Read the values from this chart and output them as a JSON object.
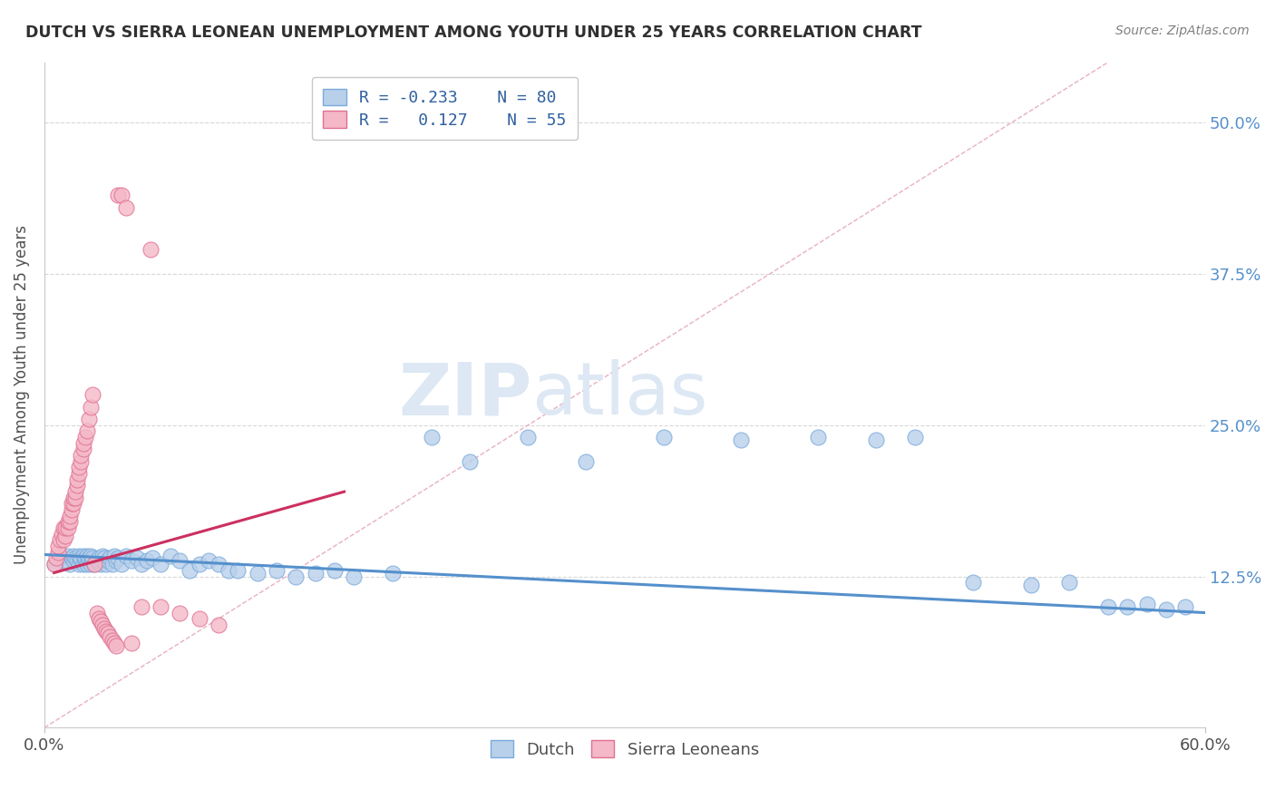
{
  "title": "DUTCH VS SIERRA LEONEAN UNEMPLOYMENT AMONG YOUTH UNDER 25 YEARS CORRELATION CHART",
  "source": "Source: ZipAtlas.com",
  "ylabel": "Unemployment Among Youth under 25 years",
  "xlim": [
    0.0,
    0.6
  ],
  "ylim": [
    0.0,
    0.55
  ],
  "xticks": [
    0.0,
    0.6
  ],
  "xticklabels": [
    "0.0%",
    "60.0%"
  ],
  "yticks": [
    0.125,
    0.25,
    0.375,
    0.5
  ],
  "yticklabels": [
    "12.5%",
    "25.0%",
    "37.5%",
    "50.0%"
  ],
  "dutch_R": -0.233,
  "dutch_N": 80,
  "sierra_R": 0.127,
  "sierra_N": 55,
  "dutch_color": "#b8d0ea",
  "dutch_edge_color": "#7aaadd",
  "dutch_line_color": "#5590cc",
  "sierra_color": "#f4b8c8",
  "sierra_edge_color": "#e07090",
  "sierra_line_color": "#cc3060",
  "ref_line_color": "#e8b0c0",
  "grid_color": "#d8d8d8",
  "legend_text_color": "#3060a0",
  "watermark_zip": "ZIP",
  "watermark_atlas": "atlas",
  "watermark_color": "#dde8f4",
  "dutch_x": [
    0.005,
    0.008,
    0.01,
    0.012,
    0.013,
    0.014,
    0.015,
    0.015,
    0.016,
    0.017,
    0.018,
    0.018,
    0.019,
    0.019,
    0.02,
    0.02,
    0.021,
    0.021,
    0.022,
    0.022,
    0.023,
    0.023,
    0.024,
    0.024,
    0.025,
    0.025,
    0.026,
    0.027,
    0.028,
    0.029,
    0.03,
    0.03,
    0.031,
    0.032,
    0.033,
    0.034,
    0.035,
    0.036,
    0.037,
    0.038,
    0.04,
    0.042,
    0.045,
    0.048,
    0.05,
    0.053,
    0.056,
    0.06,
    0.065,
    0.07,
    0.075,
    0.08,
    0.085,
    0.09,
    0.095,
    0.1,
    0.11,
    0.12,
    0.13,
    0.14,
    0.15,
    0.16,
    0.18,
    0.2,
    0.22,
    0.25,
    0.28,
    0.32,
    0.36,
    0.4,
    0.43,
    0.45,
    0.48,
    0.51,
    0.53,
    0.55,
    0.56,
    0.57,
    0.58,
    0.59
  ],
  "dutch_y": [
    0.135,
    0.14,
    0.138,
    0.142,
    0.135,
    0.14,
    0.138,
    0.142,
    0.14,
    0.138,
    0.142,
    0.135,
    0.138,
    0.14,
    0.135,
    0.142,
    0.138,
    0.14,
    0.135,
    0.142,
    0.138,
    0.14,
    0.135,
    0.142,
    0.138,
    0.14,
    0.135,
    0.138,
    0.14,
    0.135,
    0.138,
    0.142,
    0.14,
    0.135,
    0.138,
    0.14,
    0.135,
    0.142,
    0.138,
    0.14,
    0.135,
    0.142,
    0.138,
    0.14,
    0.135,
    0.138,
    0.14,
    0.135,
    0.142,
    0.138,
    0.13,
    0.135,
    0.138,
    0.135,
    0.13,
    0.13,
    0.128,
    0.13,
    0.125,
    0.128,
    0.13,
    0.125,
    0.128,
    0.24,
    0.22,
    0.24,
    0.22,
    0.24,
    0.238,
    0.24,
    0.238,
    0.24,
    0.12,
    0.118,
    0.12,
    0.1,
    0.1,
    0.102,
    0.098,
    0.1
  ],
  "sierra_x": [
    0.005,
    0.006,
    0.007,
    0.007,
    0.008,
    0.009,
    0.01,
    0.01,
    0.011,
    0.011,
    0.012,
    0.012,
    0.013,
    0.013,
    0.014,
    0.014,
    0.015,
    0.015,
    0.016,
    0.016,
    0.017,
    0.017,
    0.018,
    0.018,
    0.019,
    0.019,
    0.02,
    0.02,
    0.021,
    0.022,
    0.023,
    0.024,
    0.025,
    0.026,
    0.027,
    0.028,
    0.029,
    0.03,
    0.031,
    0.032,
    0.033,
    0.034,
    0.035,
    0.036,
    0.037,
    0.038,
    0.04,
    0.042,
    0.045,
    0.05,
    0.055,
    0.06,
    0.07,
    0.08,
    0.09
  ],
  "sierra_y": [
    0.135,
    0.14,
    0.145,
    0.15,
    0.155,
    0.16,
    0.155,
    0.165,
    0.158,
    0.165,
    0.165,
    0.17,
    0.17,
    0.175,
    0.18,
    0.185,
    0.185,
    0.19,
    0.19,
    0.195,
    0.2,
    0.205,
    0.21,
    0.215,
    0.22,
    0.225,
    0.23,
    0.235,
    0.24,
    0.245,
    0.255,
    0.265,
    0.275,
    0.135,
    0.095,
    0.09,
    0.088,
    0.085,
    0.082,
    0.08,
    0.078,
    0.075,
    0.072,
    0.07,
    0.068,
    0.44,
    0.44,
    0.43,
    0.07,
    0.1,
    0.395,
    0.1,
    0.095,
    0.09,
    0.085
  ]
}
